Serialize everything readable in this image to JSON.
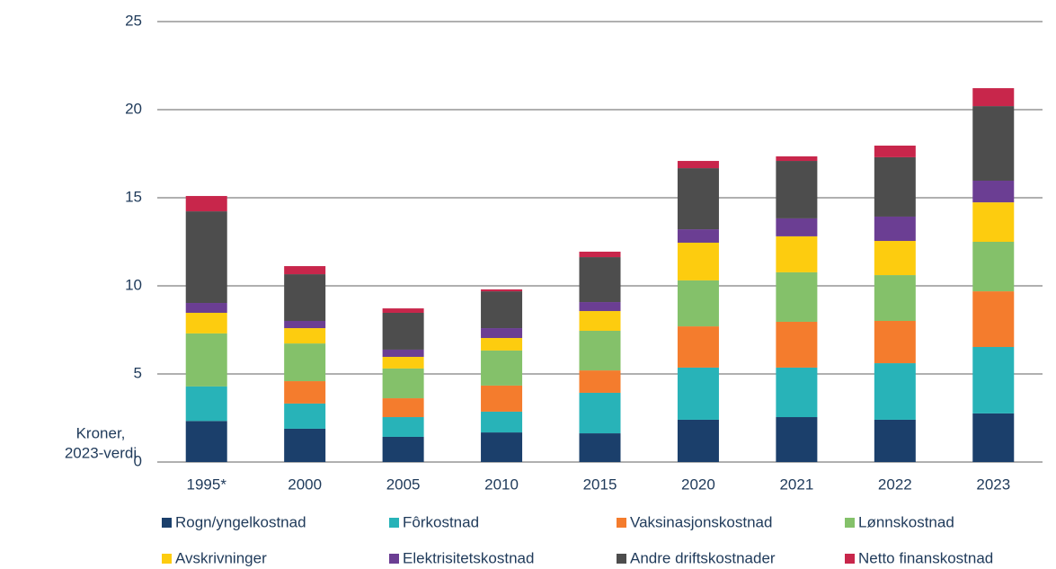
{
  "chart_data": {
    "type": "stacked_bar",
    "y_label": [
      "Kroner,",
      "2023-verdi"
    ],
    "categories": [
      "1995*",
      "2000",
      "2005",
      "2010",
      "2015",
      "2020",
      "2021",
      "2022",
      "2023"
    ],
    "series": [
      {
        "name": "Rogn/yngelkostnad",
        "color": "#1b3f6b",
        "values": [
          2.33,
          1.89,
          1.43,
          1.68,
          1.63,
          2.4,
          2.55,
          2.4,
          2.76
        ]
      },
      {
        "name": "Fôrkostnad",
        "color": "#28b3b8",
        "values": [
          1.96,
          1.43,
          1.12,
          1.18,
          2.3,
          2.96,
          2.81,
          3.21,
          3.77
        ]
      },
      {
        "name": "Vaksinasjonskostnad",
        "color": "#f47c2d",
        "values": [
          0,
          1.27,
          1.07,
          1.48,
          1.27,
          2.34,
          2.6,
          2.4,
          3.16
        ]
      },
      {
        "name": "Lønnskostnad",
        "color": "#84c16a",
        "values": [
          3.01,
          2.14,
          1.69,
          1.99,
          2.25,
          2.61,
          2.81,
          2.6,
          2.81
        ]
      },
      {
        "name": "Avskrivninger",
        "color": "#fdcc0f",
        "values": [
          1.17,
          0.87,
          0.66,
          0.71,
          1.12,
          2.14,
          2.04,
          1.94,
          2.24
        ]
      },
      {
        "name": "Elektrisitetskostnad",
        "color": "#6b3e93",
        "values": [
          0.56,
          0.41,
          0.41,
          0.56,
          0.51,
          0.76,
          1.02,
          1.38,
          1.23
        ]
      },
      {
        "name": "Andre driftskostnader",
        "color": "#4d4d4d",
        "values": [
          5.2,
          2.65,
          2.09,
          2.09,
          2.55,
          3.47,
          3.26,
          3.37,
          4.23
        ]
      },
      {
        "name": "Netto finanskostnad",
        "color": "#c8264b",
        "values": [
          0.87,
          0.46,
          0.25,
          0.11,
          0.31,
          0.41,
          0.26,
          0.66,
          1.02
        ]
      }
    ],
    "ylim": [
      0,
      25
    ],
    "yticks": [
      0,
      5,
      10,
      15,
      20,
      25
    ],
    "grid": true
  }
}
